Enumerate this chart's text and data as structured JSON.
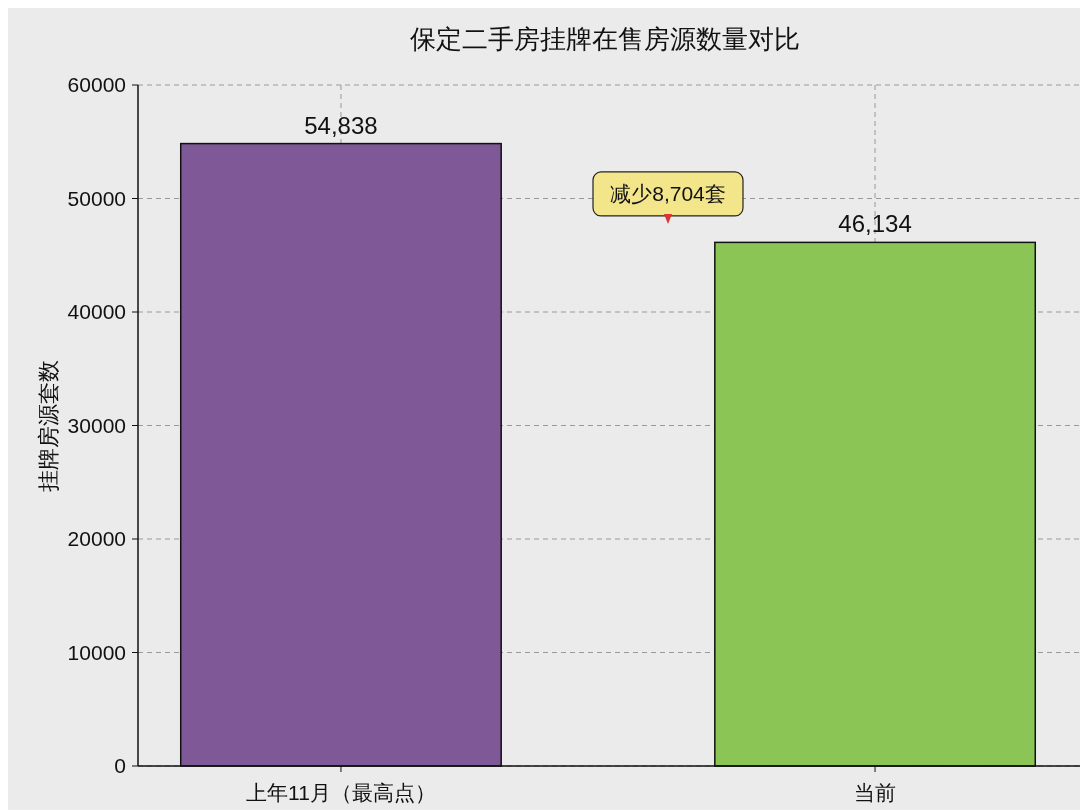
{
  "chart_data": {
    "type": "bar",
    "title": "保定二手房挂牌在售房源数量对比",
    "ylabel": "挂牌房源套数",
    "categories": [
      "上年11月（最高点）",
      "当前"
    ],
    "values": [
      54838,
      46134
    ],
    "colors": [
      "#7f5898",
      "#8bc556"
    ],
    "value_labels": [
      "54,838",
      "46,134"
    ],
    "ylim": [
      0,
      60000
    ],
    "yticks": [
      0,
      10000,
      20000,
      30000,
      40000,
      50000,
      60000
    ],
    "grid": true,
    "annotations": [
      "减少8,704套"
    ]
  }
}
